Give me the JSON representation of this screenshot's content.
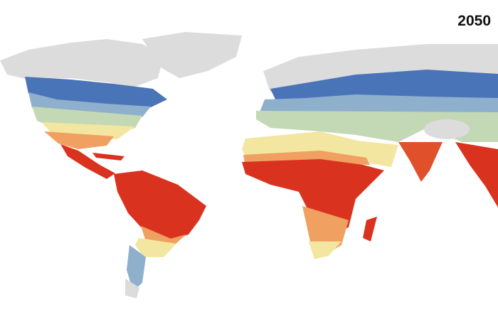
{
  "label": "2050"
}
